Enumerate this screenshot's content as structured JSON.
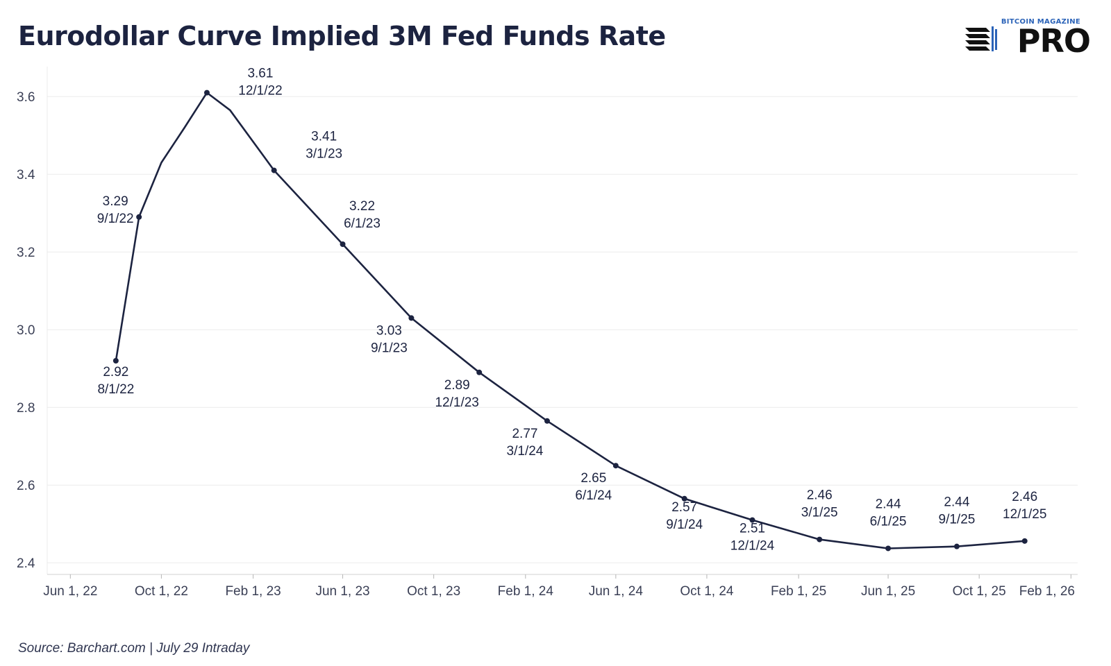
{
  "title": "Eurodollar Curve Implied 3M Fed Funds Rate",
  "source": "Source: Barchart.com | July 29 Intraday",
  "logo": {
    "small_text": "BITCOIN MAGAZINE",
    "big_text": "PRO"
  },
  "colors": {
    "line": "#1c2340",
    "grid": "#ebebeb",
    "text": "#1c2340"
  },
  "chart_data": {
    "type": "line",
    "title": "Eurodollar Curve Implied 3M Fed Funds Rate",
    "xlabel": "",
    "ylabel": "",
    "x_axis_type": "date",
    "xlim": [
      "2022-05-01",
      "2026-02-10"
    ],
    "ylim": [
      2.37,
      3.67
    ],
    "y_ticks": [
      2.4,
      2.6,
      2.8,
      3.0,
      3.2,
      3.4,
      3.6
    ],
    "x_ticks": [
      {
        "date": "2022-06-01",
        "label": "Jun 1, 22"
      },
      {
        "date": "2022-10-01",
        "label": "Oct 1, 22"
      },
      {
        "date": "2023-02-01",
        "label": "Feb 1, 23"
      },
      {
        "date": "2023-06-01",
        "label": "Jun 1, 23"
      },
      {
        "date": "2023-10-01",
        "label": "Oct 1, 23"
      },
      {
        "date": "2024-02-01",
        "label": "Feb 1, 24"
      },
      {
        "date": "2024-06-01",
        "label": "Jun 1, 24"
      },
      {
        "date": "2024-10-01",
        "label": "Oct 1, 24"
      },
      {
        "date": "2025-02-01",
        "label": "Feb 1, 25"
      },
      {
        "date": "2025-06-01",
        "label": "Jun 1, 25"
      },
      {
        "date": "2025-10-01",
        "label": "Oct 1, 25"
      },
      {
        "date": "2026-02-01",
        "label": "Feb 1, 26"
      }
    ],
    "grid": true,
    "series": [
      {
        "points": [
          {
            "date": "2022-08-01",
            "value": 2.92,
            "marker": true,
            "value_label": "2.92",
            "date_label": "8/1/22",
            "label_pos": "below"
          },
          {
            "date": "2022-09-01",
            "value": 3.29,
            "marker": true,
            "value_label": "3.29",
            "date_label": "9/1/22",
            "label_pos": "left"
          },
          {
            "date": "2022-10-01",
            "value": 3.43,
            "marker": false
          },
          {
            "date": "2022-11-01",
            "value": 3.52,
            "marker": false
          },
          {
            "date": "2022-12-01",
            "value": 3.61,
            "marker": true,
            "value_label": "3.61",
            "date_label": "12/1/22",
            "label_pos": "above-right"
          },
          {
            "date": "2023-01-01",
            "value": 3.565,
            "marker": false
          },
          {
            "date": "2023-03-01",
            "value": 3.41,
            "marker": true,
            "value_label": "3.41",
            "date_label": "3/1/23",
            "label_pos": "above-right"
          },
          {
            "date": "2023-06-01",
            "value": 3.22,
            "marker": true,
            "value_label": "3.22",
            "date_label": "6/1/23",
            "label_pos": "above-right"
          },
          {
            "date": "2023-09-01",
            "value": 3.03,
            "marker": true,
            "value_label": "3.03",
            "date_label": "9/1/23",
            "label_pos": "below-left"
          },
          {
            "date": "2023-12-01",
            "value": 2.89,
            "marker": true,
            "value_label": "2.89",
            "date_label": "12/1/23",
            "label_pos": "below-left"
          },
          {
            "date": "2024-03-01",
            "value": 2.765,
            "marker": true,
            "value_label": "2.77",
            "date_label": "3/1/24",
            "label_pos": "below-left"
          },
          {
            "date": "2024-06-01",
            "value": 2.65,
            "marker": true,
            "value_label": "2.65",
            "date_label": "6/1/24",
            "label_pos": "below-left"
          },
          {
            "date": "2024-09-01",
            "value": 2.565,
            "marker": true,
            "value_label": "2.57",
            "date_label": "9/1/24",
            "label_pos": "below"
          },
          {
            "date": "2024-12-01",
            "value": 2.51,
            "marker": true,
            "value_label": "2.51",
            "date_label": "12/1/24",
            "label_pos": "below"
          },
          {
            "date": "2025-03-01",
            "value": 2.46,
            "marker": true,
            "value_label": "2.46",
            "date_label": "3/1/25",
            "label_pos": "above"
          },
          {
            "date": "2025-06-01",
            "value": 2.437,
            "marker": true,
            "value_label": "2.44",
            "date_label": "6/1/25",
            "label_pos": "above"
          },
          {
            "date": "2025-09-01",
            "value": 2.442,
            "marker": true,
            "value_label": "2.44",
            "date_label": "9/1/25",
            "label_pos": "above"
          },
          {
            "date": "2025-12-01",
            "value": 2.456,
            "marker": true,
            "value_label": "2.46",
            "date_label": "12/1/25",
            "label_pos": "above"
          }
        ]
      }
    ]
  }
}
